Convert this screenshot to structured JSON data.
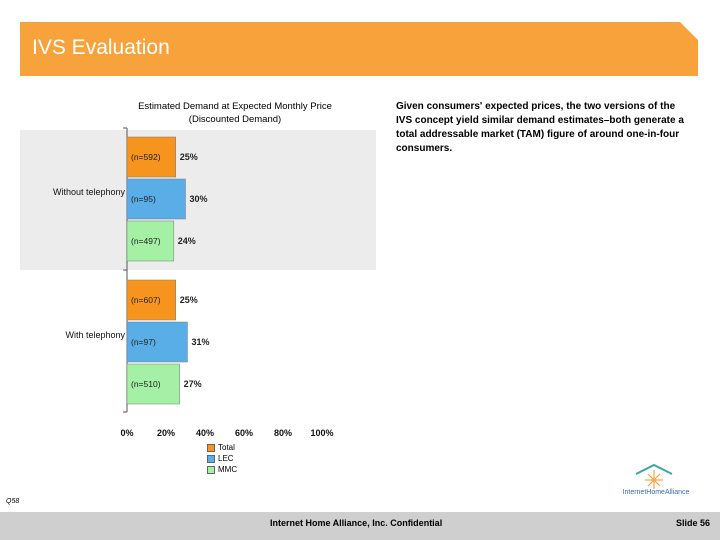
{
  "page": {
    "title": "IVS Evaluation",
    "summary": "Given consumers' expected prices, the two versions of the IVS concept yield similar demand estimates–both generate a total addressable market (TAM) figure of around one-in-four consumers.",
    "source_note": "Q58",
    "footer": "Internet Home Alliance, Inc. Confidential",
    "slide_number": "Slide 56",
    "logo_text": "InternetHomeAlliance"
  },
  "colors": {
    "banner": "#f7a23b",
    "total": "#f7941d",
    "lec": "#5aaee8",
    "mmc": "#a4f0a4",
    "panel": "#ececec"
  },
  "chart_data": {
    "type": "bar",
    "orientation": "horizontal",
    "title": [
      "Estimated Demand at Expected Monthly Price",
      "(Discounted Demand)"
    ],
    "groups": [
      "Without telephony",
      "With telephony"
    ],
    "series": [
      {
        "name": "Total",
        "values": [
          25,
          25
        ],
        "n_labels": [
          "(n=592)",
          "(n=607)"
        ],
        "value_labels": [
          "25%",
          "25%"
        ]
      },
      {
        "name": "LEC",
        "values": [
          30,
          31
        ],
        "n_labels": [
          "(n=95)",
          "(n=97)"
        ],
        "value_labels": [
          "30%",
          "31%"
        ]
      },
      {
        "name": "MMC",
        "values": [
          24,
          27
        ],
        "n_labels": [
          "(n=497)",
          "(n=510)"
        ],
        "value_labels": [
          "24%",
          "27%"
        ]
      }
    ],
    "xlim": [
      0,
      100
    ],
    "x_ticks": [
      "0%",
      "20%",
      "40%",
      "60%",
      "80%",
      "100%"
    ],
    "grid": false,
    "legend": {
      "placement": "bottom",
      "entries": [
        "Total",
        "LEC",
        "MMC"
      ]
    }
  }
}
